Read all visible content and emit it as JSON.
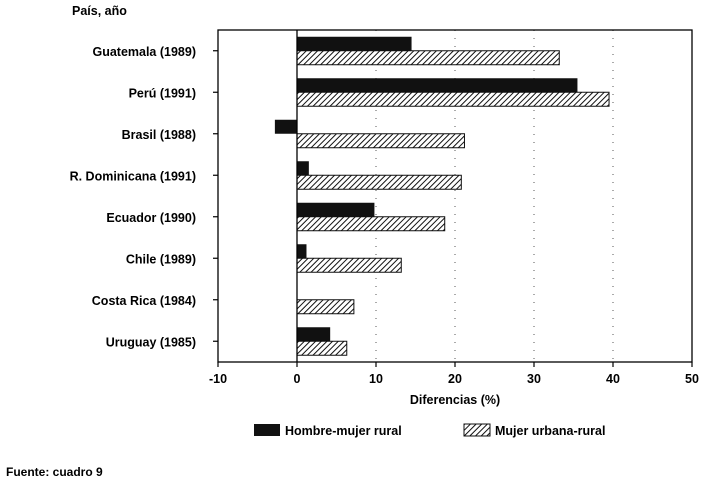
{
  "chart_data": {
    "type": "bar",
    "orientation": "horizontal",
    "y_title": "País, año",
    "xlabel": "Diferencias (%)",
    "xlim": [
      -10,
      50
    ],
    "xticks": [
      -10,
      0,
      10,
      20,
      30,
      40,
      50
    ],
    "categories": [
      "Guatemala (1989)",
      "Perú (1991)",
      "Brasil (1988)",
      "R. Dominicana (1991)",
      "Ecuador (1990)",
      "Chile (1989)",
      "Costa Rica (1984)",
      "Uruguay (1985)"
    ],
    "series": [
      {
        "name": "Hombre-mujer rural",
        "fill": "solid",
        "color": "#111111",
        "values": [
          14.5,
          35.5,
          -2.8,
          1.5,
          9.8,
          1.2,
          0.0,
          4.2
        ]
      },
      {
        "name": "Mujer urbana-rural",
        "fill": "hatched",
        "color": "#111111",
        "values": [
          33.2,
          39.5,
          21.2,
          20.8,
          18.7,
          13.2,
          7.2,
          6.3
        ]
      }
    ],
    "legend_position": "bottom",
    "grid": "dotted vertical"
  },
  "source_note": "Fuente: cuadro 9"
}
